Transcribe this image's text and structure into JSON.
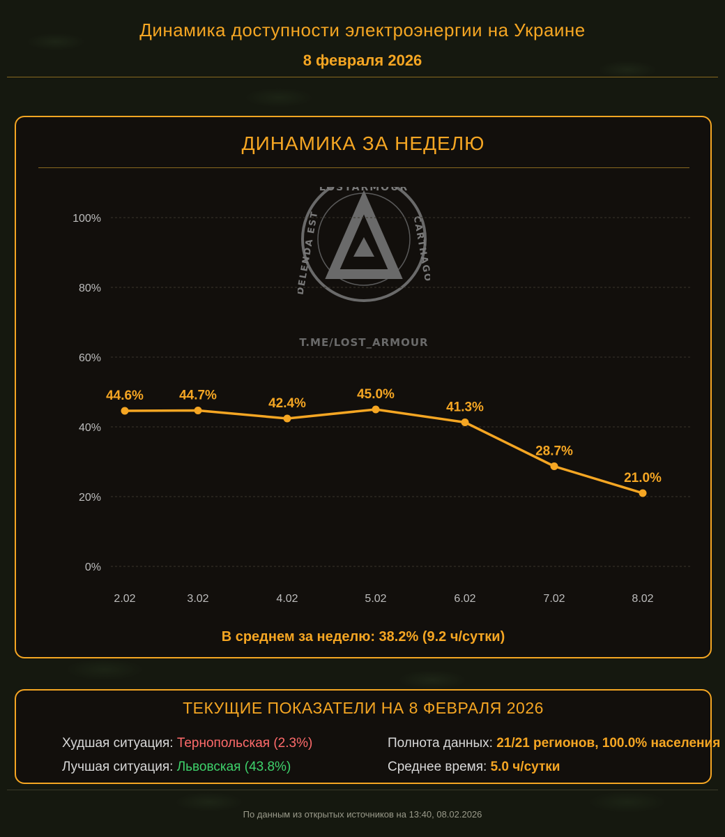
{
  "header": {
    "title": "Динамика доступности электроэнергии на Украине",
    "date": "8 февраля 2026"
  },
  "chart_panel": {
    "title": "ДИНАМИКА ЗА НЕДЕЛЮ",
    "average": "В среднем за неделю: 38.2% (9.2 ч/сутки)"
  },
  "watermark": {
    "ring_text_top": "LOSTARMOUR",
    "ring_text_right": "CARTHAGO",
    "ring_text_left": "DELENDA EST",
    "url": "T.ME/LOST_ARMOUR"
  },
  "chart_data": {
    "type": "line",
    "title": "ДИНАМИКА ЗА НЕДЕЛЮ",
    "categories": [
      "2.02",
      "3.02",
      "4.02",
      "5.02",
      "6.02",
      "7.02",
      "8.02"
    ],
    "values": [
      44.6,
      44.7,
      42.4,
      45.0,
      41.3,
      28.7,
      21.0
    ],
    "data_labels": [
      "44.6%",
      "44.7%",
      "42.4%",
      "45.0%",
      "41.3%",
      "28.7%",
      "21.0%"
    ],
    "y_ticks": [
      "0%",
      "20%",
      "40%",
      "60%",
      "80%",
      "100%"
    ],
    "ylim": [
      0,
      100
    ],
    "grid": true,
    "line_color": "#f5a623"
  },
  "stats": {
    "title": "ТЕКУЩИЕ ПОКАЗАТЕЛИ НА 8 ФЕВРАЛЯ 2026",
    "worst_label": "Худшая ситуация:",
    "worst_value": "Тернопольская (2.3%)",
    "best_label": "Лучшая ситуация:",
    "best_value": "Львовская (43.8%)",
    "completeness_label": "Полнота данных:",
    "completeness_value": "21/21 регионов, 100.0% населения",
    "avg_time_label": "Среднее время:",
    "avg_time_value": "5.0 ч/сутки"
  },
  "footer": {
    "text": "По данным из открытых источников на 13:40, 08.02.2026"
  },
  "colors": {
    "accent": "#f5a623",
    "worst": "#ff6b6b",
    "best": "#3ed26b"
  }
}
